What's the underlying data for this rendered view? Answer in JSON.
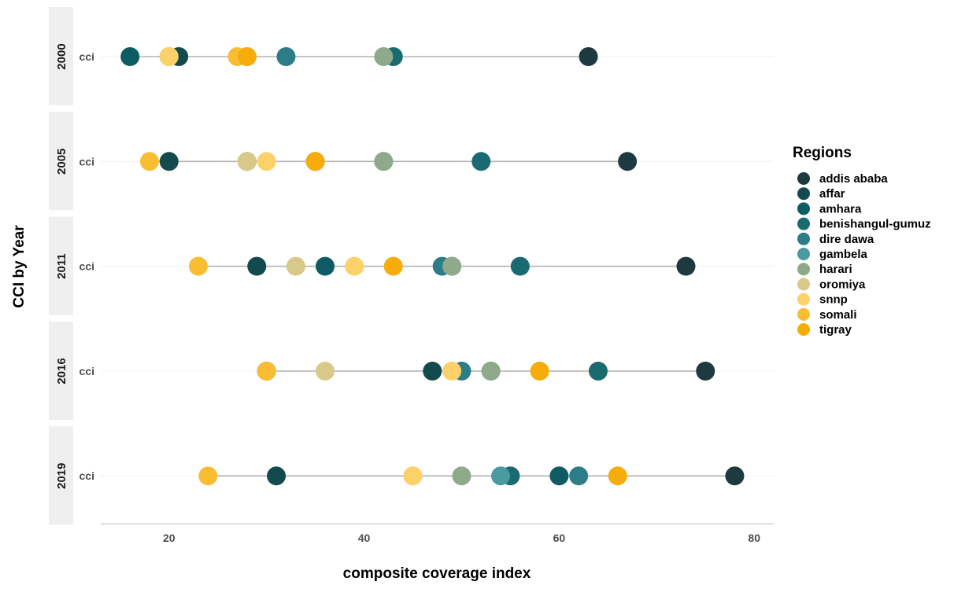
{
  "chart_data": {
    "type": "scatter",
    "subtype": "dumbbell",
    "xlabel": "composite coverage index",
    "ylabel": "CCI by Year",
    "xlim": [
      13,
      82
    ],
    "x_ticks": [
      20,
      40,
      60,
      80
    ],
    "facets": [
      "2000",
      "2005",
      "2011",
      "2016",
      "2019"
    ],
    "facet_row_label": "cci",
    "legend_title": "Regions",
    "legend_position": "right",
    "grid": false,
    "series": [
      {
        "name": "addis ababa",
        "color": "#1d3a40",
        "values": [
          63,
          67,
          73,
          75,
          78
        ]
      },
      {
        "name": "affar",
        "color": "#134a4d",
        "values": [
          21,
          20,
          29,
          47,
          31
        ]
      },
      {
        "name": "amhara",
        "color": "#0e5c63",
        "values": [
          16,
          35,
          36,
          30,
          60
        ]
      },
      {
        "name": "benishangul-gumuz",
        "color": "#1a6a72",
        "values": [
          43,
          52,
          56,
          64,
          55
        ]
      },
      {
        "name": "dire dawa",
        "color": "#2c7d87",
        "values": [
          32,
          28,
          48,
          50,
          62
        ]
      },
      {
        "name": "gambela",
        "color": "#4b9aa2",
        "values": [
          20,
          42,
          49,
          53,
          54
        ]
      },
      {
        "name": "harari",
        "color": "#8eaa8a",
        "values": [
          42,
          42,
          49,
          53,
          50
        ]
      },
      {
        "name": "oromiya",
        "color": "#d8c98a",
        "values": [
          28,
          28,
          33,
          36,
          45
        ]
      },
      {
        "name": "snnp",
        "color": "#fdd16a",
        "values": [
          20,
          30,
          39,
          49,
          45
        ]
      },
      {
        "name": "somali",
        "color": "#f9bd34",
        "values": [
          27,
          18,
          23,
          30,
          24
        ]
      },
      {
        "name": "tigray",
        "color": "#f6ad0c",
        "values": [
          28,
          35,
          43,
          58,
          66
        ]
      }
    ]
  }
}
